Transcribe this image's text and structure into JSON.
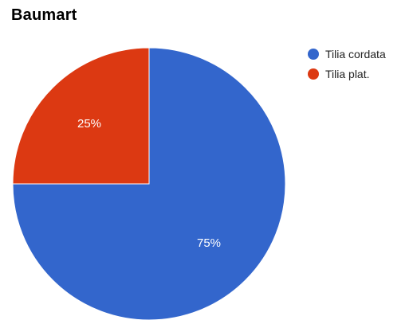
{
  "chart_data": {
    "type": "pie",
    "title": "Baumart",
    "series": [
      {
        "name": "Tilia cordata",
        "value": 75,
        "label": "75%",
        "color": "#3366cc"
      },
      {
        "name": "Tilia plat.",
        "value": 25,
        "label": "25%",
        "color": "#dc3912"
      }
    ],
    "legend_position": "right"
  }
}
